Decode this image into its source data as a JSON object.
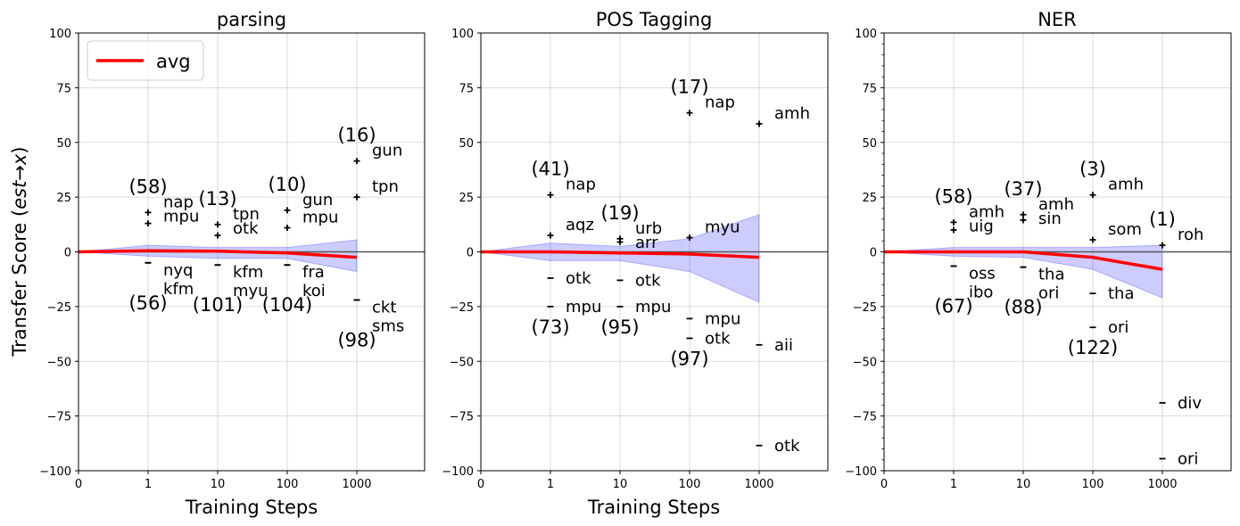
{
  "figure": {
    "ylabel_shared": "Transfer Score (est→x)",
    "ylabel_prefix": "Transfer Score (",
    "ylabel_math": "est",
    "ylabel_arrow": "→",
    "ylabel_x": "x",
    "ylabel_suffix": ")",
    "colors": {
      "avg": "#ff0000",
      "band": "#0000ff",
      "marker": "#000000",
      "grid": "#b0b0b0"
    }
  },
  "chart_data": [
    {
      "type": "scatter",
      "title": "parsing",
      "xlabel": "Training Steps",
      "ylabel": "Transfer Score (est→x)",
      "xscale": "symlog",
      "xticks": [
        "0",
        "1",
        "10",
        "100",
        "1000"
      ],
      "yticks": [
        "100",
        "75",
        "50",
        "25",
        "0",
        "−25",
        "−50",
        "−75",
        "−100"
      ],
      "ylim": [
        -100,
        100
      ],
      "grid": true,
      "legend": {
        "position": "top-left",
        "label": "avg"
      },
      "avg": {
        "x": [
          0,
          1,
          10,
          100,
          1000
        ],
        "y": [
          0,
          0.5,
          0.3,
          -0.5,
          -2.5
        ]
      },
      "band": {
        "x": [
          0,
          1,
          10,
          100,
          1000
        ],
        "upper": [
          0,
          3,
          2,
          2,
          5.5
        ],
        "lower": [
          0,
          -2,
          -3,
          -3,
          -9
        ]
      },
      "points": [
        {
          "x": 1,
          "y": 18,
          "label": "nap"
        },
        {
          "x": 1,
          "y": 13,
          "label": "mpu"
        },
        {
          "x": 1,
          "y": -5,
          "label": "nyq"
        },
        {
          "x": 1,
          "y": -5,
          "label": "kfm"
        },
        {
          "x": 10,
          "y": 12.5,
          "label": "tpn"
        },
        {
          "x": 10,
          "y": 7.5,
          "label": "otk"
        },
        {
          "x": 10,
          "y": -6,
          "label": "kfm"
        },
        {
          "x": 10,
          "y": -6,
          "label": "myu"
        },
        {
          "x": 100,
          "y": 19,
          "label": "gun"
        },
        {
          "x": 100,
          "y": 11,
          "label": "mpu"
        },
        {
          "x": 100,
          "y": -6,
          "label": "fra"
        },
        {
          "x": 100,
          "y": -6,
          "label": "koi"
        },
        {
          "x": 1000,
          "y": 41.5,
          "label": "gun"
        },
        {
          "x": 1000,
          "y": 25,
          "label": "tpn"
        },
        {
          "x": 1000,
          "y": -22,
          "label": "ckt"
        },
        {
          "x": 1000,
          "y": -22,
          "label": "sms"
        }
      ],
      "counts": [
        {
          "x": 1,
          "pos": "(58)",
          "neg": "(56)"
        },
        {
          "x": 10,
          "pos": "(13)",
          "neg": "(101)"
        },
        {
          "x": 100,
          "pos": "(10)",
          "neg": "(104)"
        },
        {
          "x": 1000,
          "pos": "(16)",
          "neg": "(98)"
        }
      ]
    },
    {
      "type": "scatter",
      "title": "POS Tagging",
      "xlabel": "Training Steps",
      "ylabel": "",
      "xscale": "symlog",
      "xticks": [
        "0",
        "1",
        "10",
        "100",
        "1000"
      ],
      "yticks": [
        "100",
        "75",
        "50",
        "25",
        "0",
        "−25",
        "−50",
        "−75",
        "−100"
      ],
      "ylim": [
        -100,
        100
      ],
      "grid": true,
      "avg": {
        "x": [
          0,
          1,
          10,
          100,
          1000
        ],
        "y": [
          0,
          0,
          -0.5,
          -1,
          -2.5
        ]
      },
      "band": {
        "x": [
          0,
          1,
          10,
          100,
          1000
        ],
        "upper": [
          0,
          4,
          2.5,
          6,
          17
        ],
        "lower": [
          0,
          -4,
          -4,
          -9,
          -23
        ]
      },
      "points": [
        {
          "x": 1,
          "y": 26,
          "label": "nap"
        },
        {
          "x": 1,
          "y": 7.5,
          "label": "aqz"
        },
        {
          "x": 1,
          "y": -12,
          "label": "otk"
        },
        {
          "x": 1,
          "y": -25,
          "label": "mpu"
        },
        {
          "x": 10,
          "y": 6,
          "label": "urb"
        },
        {
          "x": 10,
          "y": 4.5,
          "label": "arr"
        },
        {
          "x": 10,
          "y": -13,
          "label": "otk"
        },
        {
          "x": 10,
          "y": -25,
          "label": "mpu"
        },
        {
          "x": 100,
          "y": 63.5,
          "label": "nap"
        },
        {
          "x": 100,
          "y": 6.5,
          "label": "myu"
        },
        {
          "x": 100,
          "y": -30.5,
          "label": "mpu"
        },
        {
          "x": 100,
          "y": -39.5,
          "label": "otk"
        },
        {
          "x": 1000,
          "y": 58.5,
          "label": "amh"
        },
        {
          "x": 1000,
          "y": -42.5,
          "label": "aii"
        },
        {
          "x": 1000,
          "y": -88.5,
          "label": "otk"
        }
      ],
      "counts": [
        {
          "x": 1,
          "pos": "(41)",
          "neg": "(73)"
        },
        {
          "x": 10,
          "pos": "(19)",
          "neg": "(95)"
        },
        {
          "x": 100,
          "pos": "(17)",
          "neg": "(97)"
        }
      ]
    },
    {
      "type": "scatter",
      "title": "NER",
      "xlabel": "",
      "ylabel": "",
      "xscale": "symlog",
      "xticks": [
        "0",
        "1",
        "10",
        "100",
        "1000"
      ],
      "yticks": [
        "100",
        "75",
        "50",
        "25",
        "0",
        "−25",
        "−50",
        "−75",
        "−100"
      ],
      "ylim": [
        -100,
        100
      ],
      "grid": true,
      "avg": {
        "x": [
          0,
          1,
          10,
          100,
          1000
        ],
        "y": [
          0,
          0,
          0,
          -2.5,
          -8
        ]
      },
      "band": {
        "x": [
          0,
          1,
          10,
          100,
          1000
        ],
        "upper": [
          0,
          2,
          2,
          2,
          3
        ],
        "lower": [
          0,
          -2,
          -2.5,
          -8,
          -21
        ]
      },
      "points": [
        {
          "x": 1,
          "y": 13.5,
          "label": "amh"
        },
        {
          "x": 1,
          "y": 10,
          "label": "uig"
        },
        {
          "x": 1,
          "y": -6.5,
          "label": "oss"
        },
        {
          "x": 1,
          "y": -6.5,
          "label": "ibo"
        },
        {
          "x": 10,
          "y": 17,
          "label": "amh"
        },
        {
          "x": 10,
          "y": 14.5,
          "label": "sin"
        },
        {
          "x": 10,
          "y": -7,
          "label": "tha"
        },
        {
          "x": 10,
          "y": -7,
          "label": "ori"
        },
        {
          "x": 100,
          "y": 26,
          "label": "amh"
        },
        {
          "x": 100,
          "y": 5.5,
          "label": "som"
        },
        {
          "x": 100,
          "y": -19,
          "label": "tha"
        },
        {
          "x": 100,
          "y": -34.5,
          "label": "ori"
        },
        {
          "x": 1000,
          "y": 3,
          "label": "roh"
        },
        {
          "x": 1000,
          "y": -69,
          "label": "div"
        },
        {
          "x": 1000,
          "y": -94.5,
          "label": "ori"
        }
      ],
      "counts": [
        {
          "x": 1,
          "pos": "(58)",
          "neg": "(67)"
        },
        {
          "x": 10,
          "pos": "(37)",
          "neg": "(88)"
        },
        {
          "x": 100,
          "pos": "(3)",
          "neg": "(122)"
        },
        {
          "x": 1000,
          "pos": "(1)",
          "neg": ""
        }
      ]
    }
  ]
}
